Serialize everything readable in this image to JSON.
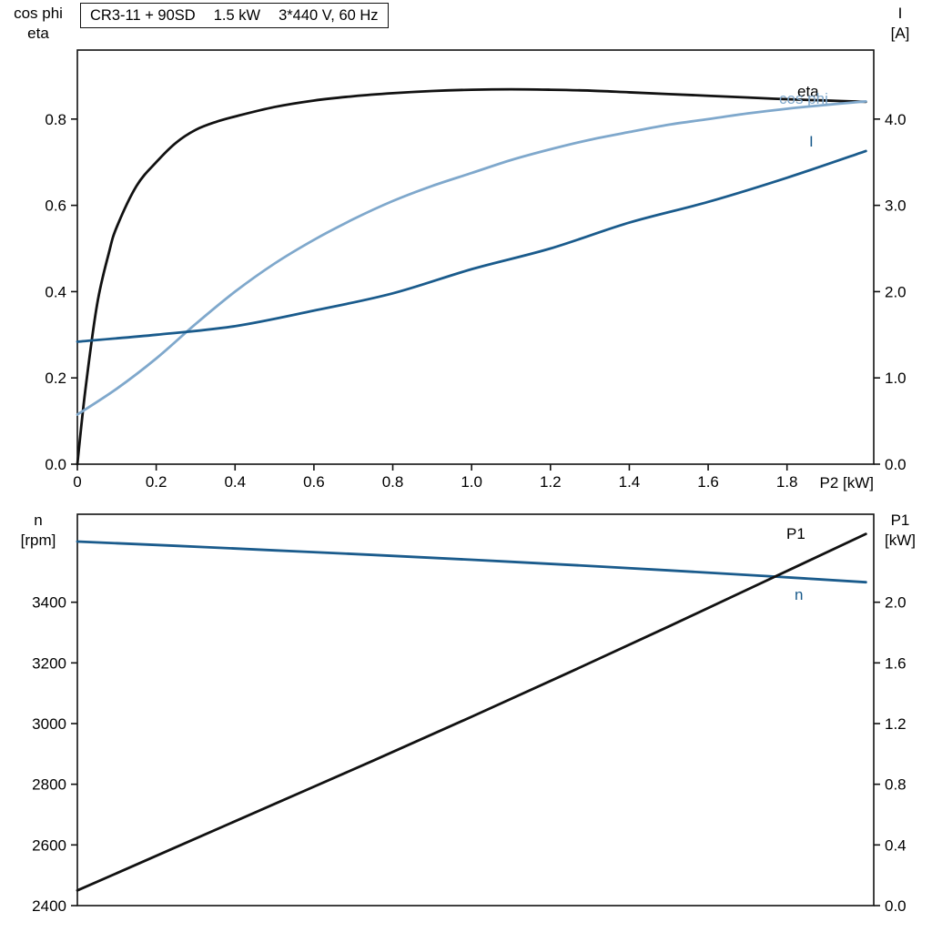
{
  "title_box": {
    "model": "CR3-11 + 90SD",
    "power": "1.5 kW",
    "voltage": "3*440 V, 60 Hz"
  },
  "colors": {
    "black": "#111111",
    "light_blue": "#7fa8cc",
    "dark_blue": "#1a5b8c",
    "frame": "#111111"
  },
  "chart_data": [
    {
      "type": "line",
      "name": "motor-electrical",
      "grid": false,
      "x_axis": {
        "label": "P2 [kW]",
        "min": 0,
        "max": 2.02,
        "ticks": [
          0,
          0.2,
          0.4,
          0.6,
          0.8,
          1.0,
          1.2,
          1.4,
          1.6,
          1.8
        ],
        "tick_labels": [
          "0",
          "0.2",
          "0.4",
          "0.6",
          "0.8",
          "1.0",
          "1.2",
          "1.4",
          "1.6",
          "1.8"
        ]
      },
      "y_left": {
        "label_line1": "cos phi",
        "label_line2": "eta",
        "min": 0,
        "max": 0.96,
        "ticks": [
          0,
          0.2,
          0.4,
          0.6,
          0.8
        ],
        "tick_labels": [
          "0.0",
          "0.2",
          "0.4",
          "0.6",
          "0.8"
        ]
      },
      "y_right": {
        "label_line1": "I",
        "label_line2": "[A]",
        "min": 0,
        "max": 4.8,
        "ticks": [
          0,
          1,
          2,
          3,
          4
        ],
        "tick_labels": [
          "0.0",
          "1.0",
          "2.0",
          "3.0",
          "4.0"
        ]
      },
      "series": [
        {
          "name": "eta",
          "label": "eta",
          "axis": "left",
          "color": "black",
          "points": [
            [
              0,
              0
            ],
            [
              0.02,
              0.17
            ],
            [
              0.05,
              0.37
            ],
            [
              0.08,
              0.49
            ],
            [
              0.1,
              0.55
            ],
            [
              0.15,
              0.645
            ],
            [
              0.2,
              0.7
            ],
            [
              0.25,
              0.745
            ],
            [
              0.3,
              0.775
            ],
            [
              0.35,
              0.793
            ],
            [
              0.4,
              0.806
            ],
            [
              0.5,
              0.828
            ],
            [
              0.6,
              0.843
            ],
            [
              0.7,
              0.853
            ],
            [
              0.8,
              0.86
            ],
            [
              0.9,
              0.865
            ],
            [
              1.0,
              0.868
            ],
            [
              1.1,
              0.869
            ],
            [
              1.2,
              0.868
            ],
            [
              1.3,
              0.866
            ],
            [
              1.4,
              0.862
            ],
            [
              1.5,
              0.858
            ],
            [
              1.6,
              0.854
            ],
            [
              1.7,
              0.85
            ],
            [
              1.8,
              0.846
            ],
            [
              1.9,
              0.843
            ],
            [
              2.0,
              0.84
            ]
          ]
        },
        {
          "name": "cos_phi",
          "label": "cos phi",
          "axis": "left",
          "color": "light_blue",
          "points": [
            [
              0,
              0.115
            ],
            [
              0.1,
              0.175
            ],
            [
              0.2,
              0.245
            ],
            [
              0.3,
              0.325
            ],
            [
              0.4,
              0.4
            ],
            [
              0.5,
              0.465
            ],
            [
              0.6,
              0.52
            ],
            [
              0.7,
              0.568
            ],
            [
              0.8,
              0.61
            ],
            [
              0.9,
              0.645
            ],
            [
              1.0,
              0.675
            ],
            [
              1.1,
              0.705
            ],
            [
              1.2,
              0.73
            ],
            [
              1.3,
              0.752
            ],
            [
              1.4,
              0.77
            ],
            [
              1.5,
              0.787
            ],
            [
              1.6,
              0.8
            ],
            [
              1.7,
              0.813
            ],
            [
              1.8,
              0.824
            ],
            [
              1.9,
              0.833
            ],
            [
              2.0,
              0.841
            ]
          ]
        },
        {
          "name": "current",
          "label": "I",
          "axis": "right",
          "color": "dark_blue",
          "points": [
            [
              0,
              1.42
            ],
            [
              0.2,
              1.5
            ],
            [
              0.4,
              1.6
            ],
            [
              0.6,
              1.78
            ],
            [
              0.8,
              1.98
            ],
            [
              1.0,
              2.26
            ],
            [
              1.2,
              2.5
            ],
            [
              1.4,
              2.8
            ],
            [
              1.6,
              3.04
            ],
            [
              1.8,
              3.32
            ],
            [
              2.0,
              3.63
            ]
          ]
        }
      ]
    },
    {
      "type": "line",
      "name": "motor-mechanical",
      "grid": false,
      "x_axis": {
        "label": "",
        "min": 0,
        "max": 2.02,
        "ticks": [],
        "tick_labels": []
      },
      "y_left": {
        "label_line1": "n",
        "label_line2": "[rpm]",
        "min": 2400,
        "max": 3690,
        "ticks": [
          2400,
          2600,
          2800,
          3000,
          3200,
          3400
        ],
        "tick_labels": [
          "2400",
          "2600",
          "2800",
          "3000",
          "3200",
          "3400"
        ]
      },
      "y_right": {
        "label_line1": "P1",
        "label_line2": "[kW]",
        "min": 0,
        "max": 2.58,
        "ticks": [
          0,
          0.4,
          0.8,
          1.2,
          1.6,
          2.0
        ],
        "tick_labels": [
          "0.0",
          "0.4",
          "0.8",
          "1.2",
          "1.6",
          "2.0"
        ]
      },
      "series": [
        {
          "name": "speed",
          "label": "n",
          "axis": "left",
          "color": "dark_blue",
          "points": [
            [
              0,
              3600
            ],
            [
              0.25,
              3586
            ],
            [
              0.5,
              3571
            ],
            [
              0.75,
              3556
            ],
            [
              1.0,
              3540
            ],
            [
              1.25,
              3523
            ],
            [
              1.5,
              3505
            ],
            [
              1.75,
              3486
            ],
            [
              2.0,
              3466
            ]
          ]
        },
        {
          "name": "p1",
          "label": "P1",
          "axis": "right",
          "color": "black",
          "points": [
            [
              0,
              0.1
            ],
            [
              0.25,
              0.385
            ],
            [
              0.5,
              0.67
            ],
            [
              0.75,
              0.955
            ],
            [
              1.0,
              1.245
            ],
            [
              1.25,
              1.54
            ],
            [
              1.5,
              1.84
            ],
            [
              1.75,
              2.145
            ],
            [
              2.0,
              2.45
            ]
          ]
        }
      ]
    }
  ]
}
